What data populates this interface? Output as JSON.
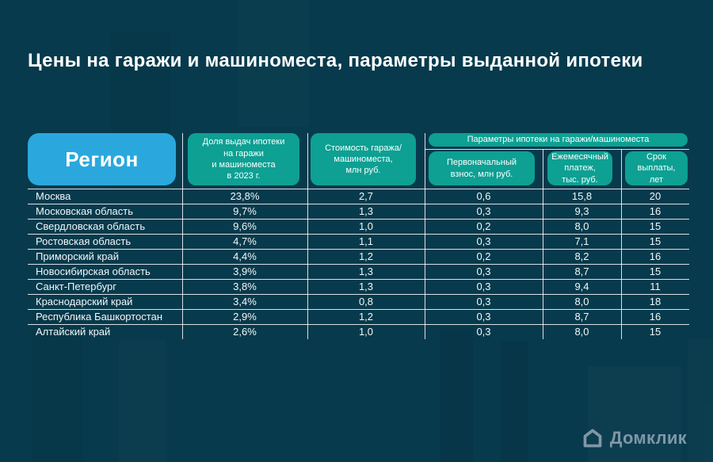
{
  "title": "Цены на гаражи и машиноместа, параметры выданной ипотеки",
  "table": {
    "region_header": "Регион",
    "share_header": "Доля выдач ипотеки\nна гаражи\nи машиноместа\nв 2023 г.",
    "cost_header": "Стоимость гаража/\nмашиноместа,\nмлн руб.",
    "group_header": "Параметры ипотеки на гаражи/машиноместа",
    "down_header": "Первоначальный\nвзнос, млн руб.",
    "monthly_header": "Ежемесячный\nплатеж,\nтыс. руб.",
    "term_header": "Срок\nвыплаты,\nлет"
  },
  "chart_data": {
    "type": "table",
    "title": "Цены на гаражи и машиноместа, параметры выданной ипотеки",
    "columns": [
      "Регион",
      "Доля выдач ипотеки на гаражи и машиноместа в 2023 г.",
      "Стоимость гаража/машиноместа, млн руб.",
      "Первоначальный взнос, млн руб.",
      "Ежемесячный платеж, тыс. руб.",
      "Срок выплаты, лет"
    ],
    "rows": [
      {
        "region": "Москва",
        "share": "23,8%",
        "cost": "2,7",
        "down": "0,6",
        "monthly": "15,8",
        "term": "20"
      },
      {
        "region": "Московская область",
        "share": "9,7%",
        "cost": "1,3",
        "down": "0,3",
        "monthly": "9,3",
        "term": "16"
      },
      {
        "region": "Свердловская область",
        "share": "9,6%",
        "cost": "1,0",
        "down": "0,2",
        "monthly": "8,0",
        "term": "15"
      },
      {
        "region": "Ростовская область",
        "share": "4,7%",
        "cost": "1,1",
        "down": "0,3",
        "monthly": "7,1",
        "term": "15"
      },
      {
        "region": "Приморский край",
        "share": "4,4%",
        "cost": "1,2",
        "down": "0,2",
        "monthly": "8,2",
        "term": "16"
      },
      {
        "region": "Новосибирская область",
        "share": "3,9%",
        "cost": "1,3",
        "down": "0,3",
        "monthly": "8,7",
        "term": "15"
      },
      {
        "region": "Санкт-Петербург",
        "share": "3,8%",
        "cost": "1,3",
        "down": "0,3",
        "monthly": "9,4",
        "term": "11"
      },
      {
        "region": "Краснодарский край",
        "share": "3,4%",
        "cost": "0,8",
        "down": "0,3",
        "monthly": "8,0",
        "term": "18"
      },
      {
        "region": "Республика Башкортостан",
        "share": "2,9%",
        "cost": "1,2",
        "down": "0,3",
        "monthly": "8,7",
        "term": "16"
      },
      {
        "region": "Алтайский край",
        "share": "2,6%",
        "cost": "1,0",
        "down": "0,3",
        "monthly": "8,0",
        "term": "15"
      }
    ]
  },
  "logo": {
    "text": "Домклик",
    "icon": "house-icon"
  },
  "colors": {
    "background": "#073a4c",
    "accent_blue": "#2aa8dd",
    "accent_teal": "#0da093",
    "grid_line": "#ffffff",
    "text": "#ffffff",
    "logo": "#8097a6"
  }
}
